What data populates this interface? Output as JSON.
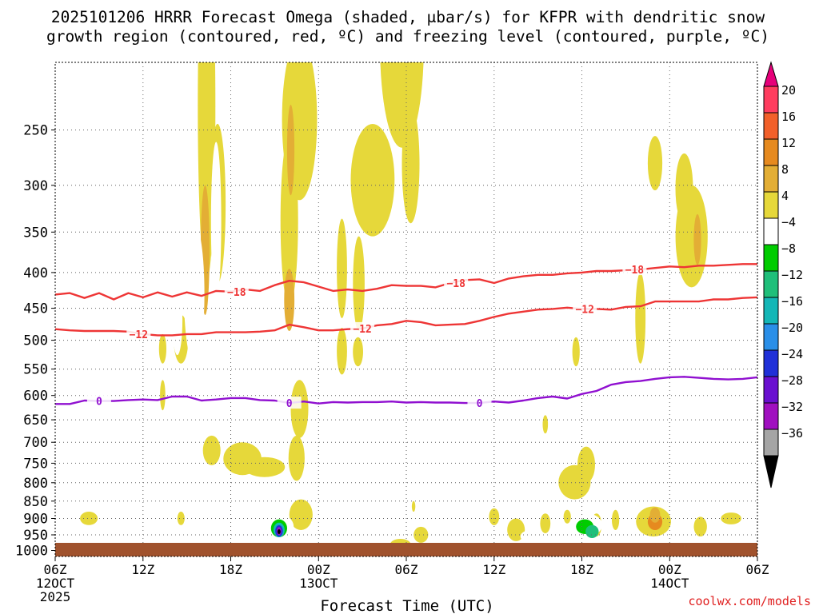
{
  "chart_data": {
    "type": "time-height",
    "title_line1": "2025101206 HRRR Forecast Omega (shaded, μbar/s) for KFPR with dendritic snow",
    "title_line2": "growth region (contoured, red, ºC) and freezing level (contoured, purple, ºC)",
    "xlabel": "Forecast Time (UTC)",
    "ylabel": "",
    "watermark": "coolwx.com/models",
    "x_range_hours": [
      0,
      48
    ],
    "y_range_hpa": [
      1020,
      200
    ],
    "y_ticks": [
      {
        "p": 250,
        "label": "250"
      },
      {
        "p": 300,
        "label": "300"
      },
      {
        "p": 350,
        "label": "350"
      },
      {
        "p": 400,
        "label": "400"
      },
      {
        "p": 450,
        "label": "450"
      },
      {
        "p": 500,
        "label": "500"
      },
      {
        "p": 550,
        "label": "550"
      },
      {
        "p": 600,
        "label": "600"
      },
      {
        "p": 650,
        "label": "650"
      },
      {
        "p": 700,
        "label": "700"
      },
      {
        "p": 750,
        "label": "750"
      },
      {
        "p": 800,
        "label": "800"
      },
      {
        "p": 850,
        "label": "850"
      },
      {
        "p": 900,
        "label": "900"
      },
      {
        "p": 950,
        "label": "950"
      },
      {
        "p": 1000,
        "label": "1000"
      }
    ],
    "x_ticks": [
      {
        "h": 0,
        "lines": [
          "06Z",
          "12OCT",
          "2025"
        ]
      },
      {
        "h": 6,
        "lines": [
          "12Z"
        ]
      },
      {
        "h": 12,
        "lines": [
          "18Z"
        ]
      },
      {
        "h": 18,
        "lines": [
          "00Z",
          "13OCT"
        ]
      },
      {
        "h": 24,
        "lines": [
          "06Z"
        ]
      },
      {
        "h": 30,
        "lines": [
          "12Z"
        ]
      },
      {
        "h": 36,
        "lines": [
          "18Z"
        ]
      },
      {
        "h": 42,
        "lines": [
          "00Z",
          "14OCT"
        ]
      },
      {
        "h": 48,
        "lines": [
          "06Z"
        ]
      }
    ],
    "colorbar": {
      "levels": [
        "20",
        "16",
        "12",
        "8",
        "4",
        "-4",
        "-8",
        "-12",
        "-16",
        "-20",
        "-24",
        "-28",
        "-32",
        "-36"
      ],
      "colors": [
        "#ff3d5f",
        "#f2602a",
        "#e68a1f",
        "#e3ae35",
        "#e6d83a",
        "#ffffff",
        "#00cc00",
        "#1fbf7a",
        "#14b7b7",
        "#2a8fe8",
        "#2030d8",
        "#6a10d0",
        "#a010c0",
        "#a5a5a5"
      ],
      "top_color": "#e6007a",
      "bottom_color": "#000000"
    },
    "contours": [
      {
        "name": "-18C",
        "color": "#ee3535",
        "label": "−18",
        "points": [
          [
            0,
            430
          ],
          [
            1,
            428
          ],
          [
            2,
            435
          ],
          [
            3,
            428
          ],
          [
            4,
            437
          ],
          [
            5,
            428
          ],
          [
            6,
            434
          ],
          [
            7,
            427
          ],
          [
            8,
            433
          ],
          [
            9,
            427
          ],
          [
            10,
            432
          ],
          [
            11,
            425
          ],
          [
            12,
            426
          ],
          [
            13,
            423
          ],
          [
            14,
            425
          ],
          [
            15,
            417
          ],
          [
            16,
            411
          ],
          [
            17,
            413
          ],
          [
            18,
            419
          ],
          [
            19,
            425
          ],
          [
            20,
            423
          ],
          [
            21,
            425
          ],
          [
            22,
            422
          ],
          [
            23,
            417
          ],
          [
            24,
            418
          ],
          [
            25,
            418
          ],
          [
            26,
            420
          ],
          [
            27,
            414
          ],
          [
            28,
            410
          ],
          [
            29,
            409
          ],
          [
            30,
            414
          ],
          [
            31,
            408
          ],
          [
            32,
            405
          ],
          [
            33,
            403
          ],
          [
            34,
            403
          ],
          [
            35,
            401
          ],
          [
            36,
            400
          ],
          [
            37,
            398
          ],
          [
            38,
            398
          ],
          [
            39,
            397
          ],
          [
            40,
            396
          ],
          [
            41,
            394
          ],
          [
            42,
            392
          ],
          [
            43,
            393
          ],
          [
            44,
            391
          ],
          [
            45,
            391
          ],
          [
            46,
            390
          ],
          [
            47,
            389
          ],
          [
            48,
            389
          ]
        ],
        "label_hours": [
          12.4,
          27.4,
          39.6
        ]
      },
      {
        "name": "-12C",
        "color": "#ee3535",
        "label": "−12",
        "points": [
          [
            0,
            482
          ],
          [
            1,
            484
          ],
          [
            2,
            485
          ],
          [
            3,
            485
          ],
          [
            4,
            485
          ],
          [
            5,
            486
          ],
          [
            6,
            490
          ],
          [
            7,
            492
          ],
          [
            8,
            492
          ],
          [
            9,
            490
          ],
          [
            10,
            490
          ],
          [
            11,
            487
          ],
          [
            12,
            487
          ],
          [
            13,
            487
          ],
          [
            14,
            486
          ],
          [
            15,
            484
          ],
          [
            16,
            475
          ],
          [
            17,
            479
          ],
          [
            18,
            484
          ],
          [
            19,
            484
          ],
          [
            20,
            482
          ],
          [
            21,
            481
          ],
          [
            22,
            476
          ],
          [
            23,
            474
          ],
          [
            24,
            469
          ],
          [
            25,
            471
          ],
          [
            26,
            476
          ],
          [
            27,
            475
          ],
          [
            28,
            474
          ],
          [
            29,
            469
          ],
          [
            30,
            463
          ],
          [
            31,
            458
          ],
          [
            32,
            455
          ],
          [
            33,
            452
          ],
          [
            34,
            451
          ],
          [
            35,
            449
          ],
          [
            36,
            451
          ],
          [
            37,
            451
          ],
          [
            38,
            452
          ],
          [
            39,
            448
          ],
          [
            40,
            447
          ],
          [
            41,
            440
          ],
          [
            42,
            440
          ],
          [
            43,
            440
          ],
          [
            44,
            440
          ],
          [
            45,
            437
          ],
          [
            46,
            437
          ],
          [
            47,
            435
          ],
          [
            48,
            434
          ]
        ],
        "label_hours": [
          5.7,
          21.0,
          36.2
        ]
      },
      {
        "name": "0C",
        "color": "#9010d0",
        "label": "0",
        "points": [
          [
            0,
            617
          ],
          [
            1,
            617
          ],
          [
            2,
            610
          ],
          [
            3,
            611
          ],
          [
            4,
            611
          ],
          [
            5,
            609
          ],
          [
            6,
            608
          ],
          [
            7,
            609
          ],
          [
            8,
            602
          ],
          [
            9,
            602
          ],
          [
            10,
            610
          ],
          [
            11,
            608
          ],
          [
            12,
            605
          ],
          [
            13,
            605
          ],
          [
            14,
            609
          ],
          [
            15,
            610
          ],
          [
            16,
            615
          ],
          [
            17,
            612
          ],
          [
            18,
            616
          ],
          [
            19,
            613
          ],
          [
            20,
            614
          ],
          [
            21,
            613
          ],
          [
            22,
            613
          ],
          [
            23,
            612
          ],
          [
            24,
            614
          ],
          [
            25,
            613
          ],
          [
            26,
            614
          ],
          [
            27,
            614
          ],
          [
            28,
            615
          ],
          [
            29,
            615
          ],
          [
            30,
            612
          ],
          [
            31,
            614
          ],
          [
            32,
            610
          ],
          [
            33,
            605
          ],
          [
            34,
            602
          ],
          [
            35,
            606
          ],
          [
            36,
            597
          ],
          [
            37,
            591
          ],
          [
            38,
            579
          ],
          [
            39,
            574
          ],
          [
            40,
            572
          ],
          [
            41,
            568
          ],
          [
            42,
            565
          ],
          [
            43,
            564
          ],
          [
            44,
            566
          ],
          [
            45,
            568
          ],
          [
            46,
            569
          ],
          [
            47,
            568
          ],
          [
            48,
            565
          ]
        ],
        "label_hours": [
          3.0,
          16.0,
          29.0
        ]
      }
    ],
    "omega_blobs": [
      {
        "t": 10.35,
        "p": 270,
        "w": 0.6,
        "h": 280,
        "v": 4
      },
      {
        "t": 10.25,
        "p": 380,
        "w": 0.3,
        "h": 160,
        "v": 8
      },
      {
        "t": 11.1,
        "p": 330,
        "w": 0.55,
        "h": 170,
        "v": 4
      },
      {
        "t": 16.7,
        "p": 250,
        "w": 1.2,
        "h": 130,
        "v": 4
      },
      {
        "t": 16.0,
        "p": 350,
        "w": 0.6,
        "h": 190,
        "v": 4
      },
      {
        "t": 16.1,
        "p": 270,
        "w": 0.25,
        "h": 80,
        "v": 8
      },
      {
        "t": 16.0,
        "p": 440,
        "w": 0.35,
        "h": 90,
        "v": 8
      },
      {
        "t": 21.7,
        "p": 300,
        "w": 1.5,
        "h": 110,
        "v": 4
      },
      {
        "t": 23.7,
        "p": 200,
        "w": 1.5,
        "h": 130,
        "v": 4
      },
      {
        "t": 24.3,
        "p": 285,
        "w": 0.6,
        "h": 110,
        "v": 4
      },
      {
        "t": 19.6,
        "p": 400,
        "w": 0.35,
        "h": 130,
        "v": 4
      },
      {
        "t": 19.6,
        "p": 520,
        "w": 0.35,
        "h": 80,
        "v": 4
      },
      {
        "t": 20.75,
        "p": 420,
        "w": 0.4,
        "h": 130,
        "v": 4
      },
      {
        "t": 20.7,
        "p": 520,
        "w": 0.35,
        "h": 50,
        "v": 4
      },
      {
        "t": 16.7,
        "p": 630,
        "w": 0.6,
        "h": 120,
        "v": 4
      },
      {
        "t": 16.5,
        "p": 740,
        "w": 0.55,
        "h": 110,
        "v": 4
      },
      {
        "t": 16.8,
        "p": 890,
        "w": 0.8,
        "h": 90,
        "v": 4
      },
      {
        "t": 12.8,
        "p": 740,
        "w": 1.3,
        "h": 80,
        "v": 4
      },
      {
        "t": 14.3,
        "p": 760,
        "w": 1.4,
        "h": 50,
        "v": 4
      },
      {
        "t": 10.7,
        "p": 720,
        "w": 0.6,
        "h": 70,
        "v": 4
      },
      {
        "t": 8.6,
        "p": 500,
        "w": 0.5,
        "h": 80,
        "v": 4
      },
      {
        "t": 7.35,
        "p": 515,
        "w": 0.25,
        "h": 50,
        "v": 4
      },
      {
        "t": 7.35,
        "p": 600,
        "w": 0.18,
        "h": 60,
        "v": 4
      },
      {
        "t": 2.3,
        "p": 900,
        "w": 0.6,
        "h": 40,
        "v": 4
      },
      {
        "t": 8.6,
        "p": 900,
        "w": 0.25,
        "h": 40,
        "v": 4
      },
      {
        "t": 23.6,
        "p": 980,
        "w": 0.7,
        "h": 35,
        "v": 4
      },
      {
        "t": 25.0,
        "p": 950,
        "w": 0.5,
        "h": 50,
        "v": 4
      },
      {
        "t": 24.5,
        "p": 865,
        "w": 0.12,
        "h": 30,
        "v": 4
      },
      {
        "t": 30.0,
        "p": 895,
        "w": 0.35,
        "h": 50,
        "v": 4
      },
      {
        "t": 31.5,
        "p": 935,
        "w": 0.6,
        "h": 70,
        "v": 4
      },
      {
        "t": 33.5,
        "p": 915,
        "w": 0.35,
        "h": 60,
        "v": 4
      },
      {
        "t": 35.5,
        "p": 800,
        "w": 1.1,
        "h": 90,
        "v": 4
      },
      {
        "t": 36.3,
        "p": 755,
        "w": 0.6,
        "h": 90,
        "v": 4
      },
      {
        "t": 37.0,
        "p": 920,
        "w": 0.35,
        "h": 70,
        "v": 4
      },
      {
        "t": 35.0,
        "p": 895,
        "w": 0.25,
        "h": 40,
        "v": 4
      },
      {
        "t": 38.3,
        "p": 905,
        "w": 0.25,
        "h": 60,
        "v": 4
      },
      {
        "t": 40.9,
        "p": 910,
        "w": 1.2,
        "h": 90,
        "v": 4
      },
      {
        "t": 41.0,
        "p": 910,
        "w": 0.5,
        "h": 50,
        "v": 12
      },
      {
        "t": 41.0,
        "p": 890,
        "w": 0.35,
        "h": 45,
        "v": 8
      },
      {
        "t": 44.1,
        "p": 925,
        "w": 0.45,
        "h": 60,
        "v": 4
      },
      {
        "t": 46.2,
        "p": 900,
        "w": 0.7,
        "h": 35,
        "v": 4
      },
      {
        "t": 40.0,
        "p": 470,
        "w": 0.35,
        "h": 140,
        "v": 4
      },
      {
        "t": 35.6,
        "p": 520,
        "w": 0.25,
        "h": 50,
        "v": 4
      },
      {
        "t": 33.5,
        "p": 660,
        "w": 0.18,
        "h": 40,
        "v": 4
      },
      {
        "t": 41.0,
        "p": 280,
        "w": 0.5,
        "h": 50,
        "v": 4
      },
      {
        "t": 43.5,
        "p": 360,
        "w": 1.1,
        "h": 120,
        "v": 4
      },
      {
        "t": 43.0,
        "p": 305,
        "w": 0.6,
        "h": 70,
        "v": 4
      },
      {
        "t": 43.9,
        "p": 360,
        "w": 0.25,
        "h": 60,
        "v": 8
      }
    ],
    "omega_negative_blobs": [
      {
        "t": 9.5,
        "p": 440,
        "w": 0.7,
        "h": 200,
        "v": -4
      },
      {
        "t": 8.35,
        "p": 470,
        "w": 0.35,
        "h": 110,
        "v": -4
      },
      {
        "t": 11.0,
        "p": 350,
        "w": 0.35,
        "h": 180,
        "v": -4
      },
      {
        "t": 14.0,
        "p": 490,
        "w": 1.4,
        "h": 130,
        "v": -4
      },
      {
        "t": 13.8,
        "p": 560,
        "w": 1.3,
        "h": 100,
        "v": -4
      },
      {
        "t": 15.0,
        "p": 630,
        "w": 0.5,
        "h": 60,
        "v": -4
      },
      {
        "t": 18.05,
        "p": 440,
        "w": 0.5,
        "h": 95,
        "v": -4
      },
      {
        "t": 28.6,
        "p": 450,
        "w": 0.35,
        "h": 110,
        "v": -4
      },
      {
        "t": 45.0,
        "p": 200,
        "w": 0.25,
        "h": 40,
        "v": -4
      },
      {
        "t": 43.8,
        "p": 245,
        "w": 0.12,
        "h": 40,
        "v": -4
      },
      {
        "t": 41.1,
        "p": 740,
        "w": 0.35,
        "h": 60,
        "v": -4
      },
      {
        "t": 42.2,
        "p": 815,
        "w": 0.18,
        "h": 40,
        "v": -4
      },
      {
        "t": 4.0,
        "p": 810,
        "w": 0.5,
        "h": 60,
        "v": -4
      },
      {
        "t": 12.8,
        "p": 930,
        "w": 0.9,
        "h": 55,
        "v": -4
      },
      {
        "t": 14.0,
        "p": 935,
        "w": 0.7,
        "h": 55,
        "v": -4
      },
      {
        "t": 15.3,
        "p": 925,
        "w": 1.0,
        "h": 75,
        "v": -4
      },
      {
        "t": 15.3,
        "p": 930,
        "w": 0.55,
        "h": 55,
        "v": -8
      },
      {
        "t": 15.3,
        "p": 935,
        "w": 0.38,
        "h": 45,
        "v": -16
      },
      {
        "t": 15.3,
        "p": 938,
        "w": 0.26,
        "h": 35,
        "v": -24
      },
      {
        "t": 15.3,
        "p": 938,
        "w": 0.16,
        "h": 25,
        "v": -32
      },
      {
        "t": 15.3,
        "p": 940,
        "w": 0.08,
        "h": 15,
        "v": -36
      },
      {
        "t": 19.3,
        "p": 910,
        "w": 0.6,
        "h": 45,
        "v": -4
      },
      {
        "t": 32.5,
        "p": 955,
        "w": 0.7,
        "h": 40,
        "v": -4
      },
      {
        "t": 36.3,
        "p": 920,
        "w": 1.1,
        "h": 70,
        "v": -4
      },
      {
        "t": 36.2,
        "p": 925,
        "w": 0.6,
        "h": 45,
        "v": -8
      },
      {
        "t": 36.7,
        "p": 940,
        "w": 0.45,
        "h": 40,
        "v": -12
      },
      {
        "t": 39.2,
        "p": 890,
        "w": 0.15,
        "h": 45,
        "v": -4
      }
    ]
  }
}
